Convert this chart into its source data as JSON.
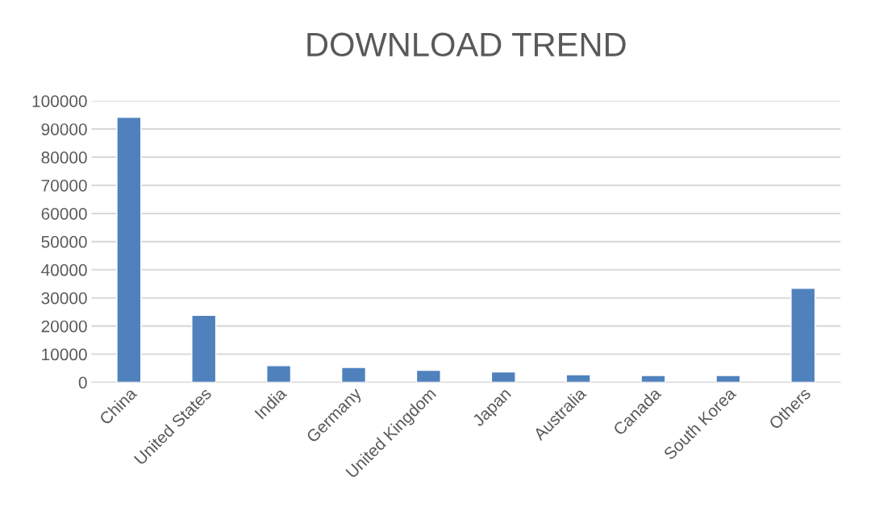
{
  "chart_data": {
    "type": "bar",
    "title": "DOWNLOAD TREND",
    "categories": [
      "China",
      "United States",
      "India",
      "Germany",
      "United Kingdom",
      "Japan",
      "Australia",
      "Canada",
      "South Korea",
      "Others"
    ],
    "values": [
      94200,
      23800,
      5900,
      5300,
      4300,
      3700,
      2700,
      2400,
      2400,
      33400
    ],
    "color": "#4f81bd",
    "ylim": [
      0,
      100000
    ],
    "yticks": [
      0,
      10000,
      20000,
      30000,
      40000,
      50000,
      60000,
      70000,
      80000,
      90000,
      100000
    ],
    "grid": "y",
    "legend": false
  }
}
